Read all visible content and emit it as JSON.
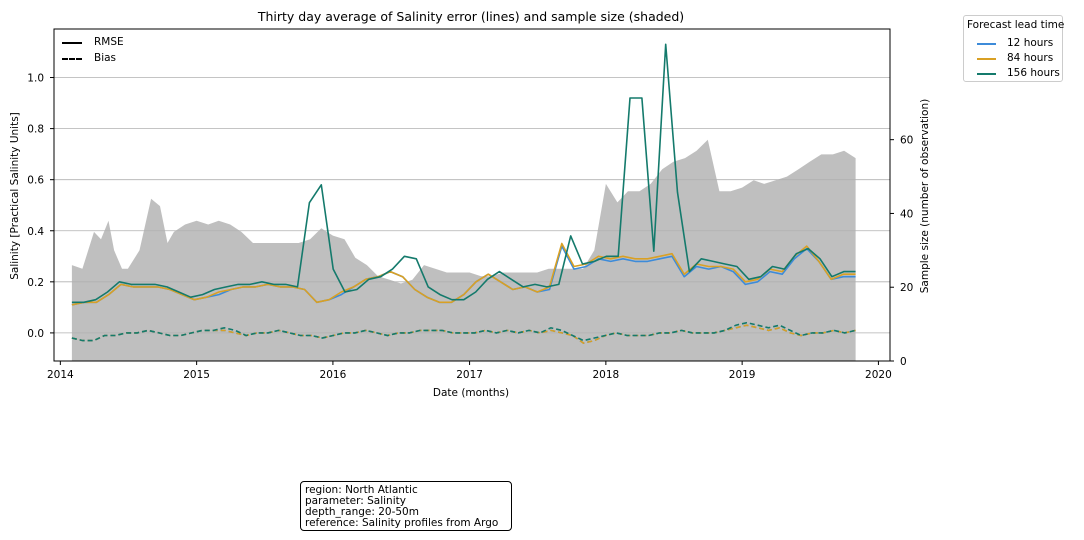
{
  "chart_data": {
    "type": "line",
    "title": "Thirty day average of Salinity error (lines) and sample size (shaded)",
    "xlabel": "Date (months)",
    "ylabel": "Salinity [Practical Salinity Units]",
    "y2label": "Sample size (number of observation)",
    "xlim": [
      "2013-12-15",
      "2020-02-01"
    ],
    "ylim": [
      -0.11,
      1.19
    ],
    "y2lim": [
      0,
      90
    ],
    "x_ticks": [
      "2014",
      "2015",
      "2016",
      "2017",
      "2018",
      "2019",
      "2020"
    ],
    "y_ticks": [
      "0.0",
      "0.2",
      "0.4",
      "0.6",
      "0.8",
      "1.0"
    ],
    "y2_ticks": [
      "0",
      "20",
      "40",
      "60"
    ],
    "grid": "horizontal",
    "style_legend": {
      "placement": "top-left",
      "entries": [
        {
          "label": "RMSE",
          "style": "solid"
        },
        {
          "label": "Bias",
          "style": "dashed"
        }
      ]
    },
    "lead_legend": {
      "title": "Forecast lead time",
      "placement": "outside-top-right",
      "entries": [
        {
          "label": "12 hours",
          "color": "#3d8bd9"
        },
        {
          "label": "84 hours",
          "color": "#d9a024"
        },
        {
          "label": "156 hours",
          "color": "#147a6c"
        }
      ]
    },
    "sample_size": {
      "color": "#bfbfbf",
      "x": [
        "2014-02-01",
        "2014-03-01",
        "2014-04-01",
        "2014-04-20",
        "2014-05-10",
        "2014-05-25",
        "2014-06-15",
        "2014-07-01",
        "2014-08-01",
        "2014-09-01",
        "2014-09-25",
        "2014-10-15",
        "2014-11-01",
        "2014-12-01",
        "2015-01-01",
        "2015-02-01",
        "2015-03-01",
        "2015-04-01",
        "2015-05-01",
        "2015-06-01",
        "2015-07-01",
        "2015-08-01",
        "2015-09-01",
        "2015-10-01",
        "2015-11-01",
        "2015-12-01",
        "2016-01-01",
        "2016-02-01",
        "2016-03-01",
        "2016-04-01",
        "2016-05-01",
        "2016-06-01",
        "2016-07-01",
        "2016-08-01",
        "2016-09-01",
        "2016-10-01",
        "2016-11-01",
        "2016-12-01",
        "2017-01-01",
        "2017-02-01",
        "2017-03-01",
        "2017-04-01",
        "2017-05-01",
        "2017-06-01",
        "2017-07-01",
        "2017-08-01",
        "2017-09-01",
        "2017-10-01",
        "2017-11-01",
        "2017-12-01",
        "2018-01-01",
        "2018-02-01",
        "2018-03-01",
        "2018-04-01",
        "2018-05-01",
        "2018-06-01",
        "2018-07-01",
        "2018-08-01",
        "2018-09-01",
        "2018-10-01",
        "2018-11-01",
        "2018-12-01",
        "2019-01-01",
        "2019-02-01",
        "2019-03-01",
        "2019-04-01",
        "2019-05-01",
        "2019-06-01",
        "2019-07-01",
        "2019-08-01",
        "2019-09-01",
        "2019-10-01",
        "2019-11-01"
      ],
      "values": [
        26,
        25,
        35,
        33,
        38,
        30,
        25,
        25,
        30,
        44,
        42,
        32,
        35,
        37,
        38,
        37,
        38,
        37,
        35,
        32,
        32,
        32,
        32,
        32,
        33,
        36,
        34,
        33,
        28,
        26,
        23,
        22,
        21,
        22,
        26,
        25,
        24,
        24,
        24,
        23,
        23,
        24,
        24,
        24,
        24,
        25,
        25,
        25,
        25,
        30,
        48,
        43,
        46,
        46,
        48,
        52,
        54,
        55,
        57,
        60,
        46,
        46,
        47,
        49,
        48,
        49,
        50,
        52,
        54,
        56,
        56,
        57,
        55
      ]
    },
    "series": [
      {
        "name": "12 hours",
        "color": "#3d8bd9",
        "rmse": [
          0.11,
          0.12,
          0.12,
          0.15,
          0.19,
          0.18,
          0.18,
          0.18,
          0.17,
          0.15,
          0.13,
          0.14,
          0.15,
          0.17,
          0.18,
          0.18,
          0.19,
          0.18,
          0.18,
          0.17,
          0.12,
          0.13,
          0.15,
          0.18,
          0.21,
          0.22,
          0.24,
          0.22,
          0.17,
          0.14,
          0.12,
          0.12,
          0.15,
          0.2,
          0.23,
          0.2,
          0.17,
          0.18,
          0.16,
          0.17,
          0.34,
          0.25,
          0.26,
          0.29,
          0.28,
          0.29,
          0.28,
          0.28,
          0.29,
          0.3,
          0.22,
          0.26,
          0.25,
          0.26,
          0.24,
          0.19,
          0.2,
          0.24,
          0.23,
          0.29,
          0.33,
          0.28,
          0.21,
          0.22,
          0.22
        ],
        "bias": [
          -0.02,
          -0.03,
          -0.03,
          -0.01,
          -0.01,
          0.0,
          0.0,
          0.01,
          0.0,
          -0.01,
          -0.01,
          0.0,
          0.01,
          0.01,
          0.01,
          0.0,
          -0.01,
          0.0,
          0.0,
          0.01,
          0.0,
          -0.01,
          -0.01,
          -0.02,
          -0.01,
          0.0,
          0.0,
          0.01,
          0.0,
          -0.01,
          0.0,
          0.0,
          0.01,
          0.01,
          0.01,
          0.0,
          0.0,
          0.0,
          0.01,
          0.0,
          0.01,
          0.0,
          0.01,
          0.0,
          0.01,
          0.0,
          -0.01,
          -0.04,
          -0.03,
          -0.01,
          0.0,
          -0.01,
          -0.01,
          -0.01,
          0.0,
          0.0,
          0.01,
          0.0,
          0.0,
          0.0,
          0.01,
          0.02,
          0.03,
          0.02,
          0.01,
          0.02,
          0.0,
          -0.01,
          0.0,
          0.0,
          0.01,
          0.0,
          0.01
        ]
      },
      {
        "name": "84 hours",
        "color": "#d9a024",
        "rmse": [
          0.11,
          0.12,
          0.12,
          0.15,
          0.19,
          0.18,
          0.18,
          0.18,
          0.17,
          0.15,
          0.13,
          0.14,
          0.16,
          0.17,
          0.18,
          0.18,
          0.19,
          0.18,
          0.18,
          0.17,
          0.12,
          0.13,
          0.16,
          0.18,
          0.21,
          0.22,
          0.24,
          0.22,
          0.17,
          0.14,
          0.12,
          0.12,
          0.15,
          0.2,
          0.23,
          0.2,
          0.17,
          0.18,
          0.16,
          0.18,
          0.35,
          0.26,
          0.27,
          0.3,
          0.29,
          0.3,
          0.29,
          0.29,
          0.3,
          0.31,
          0.23,
          0.27,
          0.26,
          0.26,
          0.25,
          0.2,
          0.21,
          0.25,
          0.24,
          0.3,
          0.34,
          0.28,
          0.21,
          0.23,
          0.23
        ],
        "bias": [
          -0.02,
          -0.03,
          -0.03,
          -0.01,
          -0.01,
          0.0,
          0.0,
          0.01,
          0.0,
          -0.01,
          -0.01,
          0.0,
          0.01,
          0.01,
          0.01,
          0.0,
          -0.01,
          0.0,
          0.0,
          0.01,
          0.0,
          -0.01,
          -0.01,
          -0.02,
          -0.01,
          0.0,
          0.0,
          0.01,
          0.0,
          -0.01,
          0.0,
          0.0,
          0.01,
          0.01,
          0.01,
          0.0,
          0.0,
          0.0,
          0.01,
          0.0,
          0.01,
          0.0,
          0.01,
          0.0,
          0.01,
          0.0,
          -0.01,
          -0.04,
          -0.03,
          -0.01,
          0.0,
          -0.01,
          -0.01,
          -0.01,
          0.0,
          0.0,
          0.01,
          0.0,
          0.0,
          0.0,
          0.01,
          0.02,
          0.03,
          0.02,
          0.01,
          0.02,
          0.0,
          -0.01,
          0.0,
          0.0,
          0.01,
          0.0,
          0.01
        ]
      },
      {
        "name": "156 hours",
        "color": "#147a6c",
        "rmse": [
          0.12,
          0.12,
          0.13,
          0.16,
          0.2,
          0.19,
          0.19,
          0.19,
          0.18,
          0.16,
          0.14,
          0.15,
          0.17,
          0.18,
          0.19,
          0.19,
          0.2,
          0.19,
          0.19,
          0.18,
          0.51,
          0.58,
          0.25,
          0.16,
          0.17,
          0.21,
          0.22,
          0.25,
          0.3,
          0.29,
          0.18,
          0.15,
          0.13,
          0.13,
          0.16,
          0.21,
          0.24,
          0.21,
          0.18,
          0.19,
          0.18,
          0.19,
          0.38,
          0.27,
          0.28,
          0.3,
          0.3,
          0.92,
          0.92,
          0.32,
          1.13,
          0.55,
          0.24,
          0.29,
          0.28,
          0.27,
          0.26,
          0.21,
          0.22,
          0.26,
          0.25,
          0.31,
          0.33,
          0.29,
          0.22,
          0.24,
          0.24
        ],
        "bias": [
          -0.02,
          -0.03,
          -0.03,
          -0.01,
          -0.01,
          0.0,
          0.0,
          0.01,
          0.0,
          -0.01,
          -0.01,
          0.0,
          0.01,
          0.01,
          0.02,
          0.01,
          -0.01,
          0.0,
          0.0,
          0.01,
          0.0,
          -0.01,
          -0.01,
          -0.02,
          -0.01,
          0.0,
          0.0,
          0.01,
          0.0,
          -0.01,
          0.0,
          0.0,
          0.01,
          0.01,
          0.01,
          0.0,
          0.0,
          0.0,
          0.01,
          0.0,
          0.01,
          0.0,
          0.01,
          0.0,
          0.02,
          0.01,
          -0.01,
          -0.03,
          -0.02,
          -0.01,
          0.0,
          -0.01,
          -0.01,
          -0.01,
          0.0,
          0.0,
          0.01,
          0.0,
          0.0,
          0.0,
          0.01,
          0.03,
          0.04,
          0.03,
          0.02,
          0.03,
          0.01,
          -0.01,
          0.0,
          0.0,
          0.01,
          0.0,
          0.01
        ]
      }
    ]
  },
  "info_box": {
    "line1": "region: North Atlantic",
    "line2": "parameter: Salinity",
    "line3": "depth_range: 20-50m",
    "line4": "reference: Salinity profiles from Argo"
  }
}
